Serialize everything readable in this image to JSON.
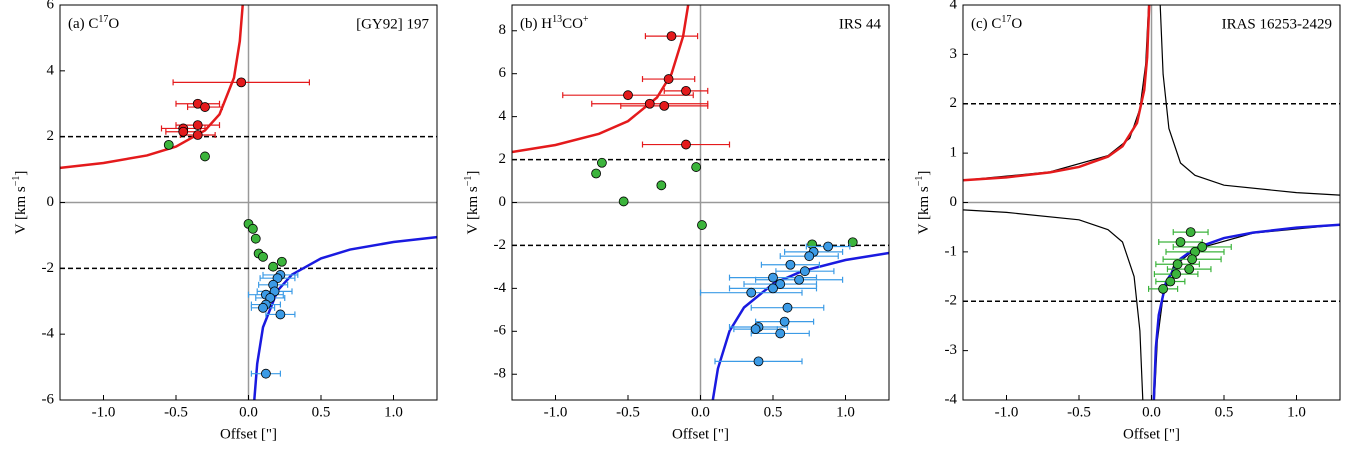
{
  "chart_data": [
    {
      "type": "scatter",
      "label": [
        {
          "text": "(a) C"
        },
        {
          "text": "17",
          "sup": true
        },
        {
          "text": "O"
        }
      ],
      "source": "[GY92] 197",
      "xlabel": "Offset [\"]",
      "ylabel": [
        {
          "text": "V [km s"
        },
        {
          "text": "−1",
          "sup": true
        },
        {
          "text": "]"
        }
      ],
      "xlim": [
        -1.3,
        1.3
      ],
      "ylim": [
        -6,
        6
      ],
      "xticks": [
        {
          "value": -1,
          "label": "-1.0"
        },
        -0.5,
        {
          "value": 0,
          "label": "0.0"
        },
        0.5,
        {
          "value": 1,
          "label": "1.0"
        }
      ],
      "yticks": [
        -6,
        -4,
        -2,
        0,
        2,
        4,
        6
      ],
      "hlines": [
        2,
        -2
      ],
      "series": [
        {
          "style": "line",
          "color": "#e41a1c",
          "x": [
            -1.3,
            -1.0,
            -0.7,
            -0.5,
            -0.3,
            -0.2,
            -0.1,
            -0.06,
            -0.04
          ],
          "values": [
            1.05,
            1.2,
            1.43,
            1.7,
            2.19,
            2.68,
            3.79,
            4.9,
            6.0
          ]
        },
        {
          "style": "line",
          "color": "#1a1ae0",
          "x": [
            1.3,
            1.0,
            0.7,
            0.5,
            0.3,
            0.2,
            0.1,
            0.06,
            0.04
          ],
          "values": [
            -1.05,
            -1.2,
            -1.43,
            -1.7,
            -2.19,
            -2.68,
            -3.79,
            -4.9,
            -6.0
          ]
        },
        {
          "style": "points",
          "color": "#e41a1c",
          "x": [
            -0.05,
            -0.35,
            -0.3,
            -0.35,
            -0.45,
            -0.45,
            -0.35
          ],
          "values": [
            3.65,
            3.0,
            2.9,
            2.35,
            2.25,
            2.15,
            2.05
          ],
          "xerr": [
            0.47,
            0.15,
            0.12,
            0.15,
            0.15,
            0.12,
            0.12
          ]
        },
        {
          "style": "points",
          "color": "#3cb43c",
          "x": [
            -0.55,
            -0.3,
            0.0,
            0.03,
            0.05,
            0.07,
            0.1,
            0.17,
            0.23
          ],
          "values": [
            1.75,
            1.4,
            -0.65,
            -0.8,
            -1.1,
            -1.55,
            -1.65,
            -1.95,
            -1.8
          ]
        },
        {
          "style": "points",
          "color": "#3c9be6",
          "x": [
            0.22,
            0.2,
            0.17,
            0.18,
            0.12,
            0.15,
            0.12,
            0.1,
            0.22,
            0.12
          ],
          "values": [
            -2.2,
            -2.3,
            -2.5,
            -2.7,
            -2.8,
            -2.9,
            -3.1,
            -3.2,
            -3.4,
            -5.2
          ],
          "xerr": [
            0.12,
            0.12,
            0.1,
            0.12,
            0.12,
            0.1,
            0.1,
            0.08,
            0.1,
            0.1
          ]
        }
      ]
    },
    {
      "type": "scatter",
      "label": [
        {
          "text": "(b) H"
        },
        {
          "text": "13",
          "sup": true
        },
        {
          "text": "CO"
        },
        {
          "text": "+",
          "sup": true
        }
      ],
      "source": "IRS 44",
      "xlabel": "Offset [\"]",
      "ylabel": [
        {
          "text": "V [km s"
        },
        {
          "text": "−1",
          "sup": true
        },
        {
          "text": "]"
        }
      ],
      "xlim": [
        -1.3,
        1.3
      ],
      "ylim": [
        -9.2,
        9.2
      ],
      "xticks": [
        {
          "value": -1,
          "label": "-1.0"
        },
        -0.5,
        {
          "value": 0,
          "label": "0.0"
        },
        0.5,
        {
          "value": 1,
          "label": "1.0"
        }
      ],
      "yticks": [
        -8,
        -6,
        -4,
        -2,
        0,
        2,
        4,
        6,
        8
      ],
      "hlines": [
        2,
        -2
      ],
      "series": [
        {
          "style": "line",
          "color": "#e41a1c",
          "x": [
            -1.3,
            -1.0,
            -0.7,
            -0.5,
            -0.3,
            -0.2,
            -0.12,
            -0.085
          ],
          "values": [
            2.35,
            2.68,
            3.2,
            3.79,
            4.89,
            5.99,
            7.74,
            9.2
          ]
        },
        {
          "style": "line",
          "color": "#1a1ae0",
          "x": [
            1.3,
            1.0,
            0.7,
            0.5,
            0.3,
            0.2,
            0.12,
            0.085
          ],
          "values": [
            -2.35,
            -2.68,
            -3.2,
            -3.79,
            -4.89,
            -5.99,
            -7.74,
            -9.2
          ]
        },
        {
          "style": "points",
          "color": "#e41a1c",
          "x": [
            -0.2,
            -0.22,
            -0.1,
            -0.5,
            -0.35,
            -0.25,
            -0.1
          ],
          "values": [
            7.75,
            5.75,
            5.2,
            5.0,
            4.6,
            4.5,
            2.7
          ],
          "xerr": [
            0.18,
            0.18,
            0.15,
            0.45,
            0.4,
            0.3,
            0.3
          ]
        },
        {
          "style": "points",
          "color": "#3cb43c",
          "x": [
            -0.68,
            -0.72,
            -0.27,
            -0.03,
            -0.53,
            0.01,
            0.77,
            1.05
          ],
          "values": [
            1.85,
            1.35,
            0.8,
            1.65,
            0.05,
            -1.05,
            -1.95,
            -1.85
          ]
        },
        {
          "style": "points",
          "color": "#3c9be6",
          "x": [
            0.88,
            0.78,
            0.75,
            0.62,
            0.72,
            0.68,
            0.5,
            0.55,
            0.5,
            0.35,
            0.6,
            0.58,
            0.4,
            0.38,
            0.55,
            0.4
          ],
          "values": [
            -2.05,
            -2.3,
            -2.5,
            -2.9,
            -3.2,
            -3.6,
            -3.5,
            -3.8,
            -4.0,
            -4.2,
            -4.9,
            -5.55,
            -5.8,
            -5.9,
            -6.1,
            -7.4
          ],
          "xerr": [
            0.15,
            0.2,
            0.2,
            0.2,
            0.2,
            0.3,
            0.3,
            0.25,
            0.3,
            0.35,
            0.25,
            0.2,
            0.2,
            0.15,
            0.2,
            0.3
          ]
        }
      ]
    },
    {
      "type": "scatter",
      "label": [
        {
          "text": "(c) C"
        },
        {
          "text": "17",
          "sup": true
        },
        {
          "text": "O"
        }
      ],
      "source": "IRAS 16253-2429",
      "xlabel": "Offset [\"]",
      "ylabel": [
        {
          "text": "V [km s"
        },
        {
          "text": "−1",
          "sup": true
        },
        {
          "text": "]"
        }
      ],
      "xlim": [
        -1.3,
        1.3
      ],
      "ylim": [
        -4,
        4
      ],
      "xticks": [
        {
          "value": -1,
          "label": "-1.0"
        },
        -0.5,
        {
          "value": 0,
          "label": "0.0"
        },
        0.5,
        {
          "value": 1,
          "label": "1.0"
        }
      ],
      "yticks": [
        -4,
        -3,
        -2,
        -1,
        0,
        1,
        2,
        3,
        4
      ],
      "hlines": [
        2,
        -2
      ],
      "series": [
        {
          "style": "thin",
          "color": "#000000",
          "x": [
            1.3,
            1.0,
            0.5,
            0.3,
            0.2,
            0.12,
            0.08,
            0.06
          ],
          "values": [
            0.15,
            0.2,
            0.35,
            0.55,
            0.8,
            1.5,
            2.6,
            4
          ]
        },
        {
          "style": "thin",
          "color": "#000000",
          "x": [
            -1.3,
            -1.0,
            -0.5,
            -0.3,
            -0.2,
            -0.12,
            -0.08,
            -0.06
          ],
          "values": [
            -0.15,
            -0.2,
            -0.35,
            -0.55,
            -0.8,
            -1.5,
            -2.6,
            -4
          ]
        },
        {
          "style": "thin",
          "color": "#000000",
          "x": [
            -1.3,
            -0.7,
            -0.3,
            -0.15,
            -0.08,
            -0.04,
            -0.02
          ],
          "values": [
            0.45,
            0.62,
            0.95,
            1.3,
            1.9,
            2.8,
            4
          ]
        },
        {
          "style": "thin",
          "color": "#000000",
          "x": [
            1.3,
            0.7,
            0.3,
            0.15,
            0.08,
            0.04,
            0.02
          ],
          "values": [
            -0.45,
            -0.62,
            -0.95,
            -1.3,
            -1.9,
            -2.8,
            -4
          ]
        },
        {
          "style": "line",
          "color": "#e41a1c",
          "x": [
            -1.3,
            -1.0,
            -0.7,
            -0.5,
            -0.3,
            -0.2,
            -0.1,
            -0.05,
            -0.03,
            -0.016
          ],
          "values": [
            0.45,
            0.51,
            0.61,
            0.72,
            0.93,
            1.14,
            1.61,
            2.28,
            2.94,
            4.0
          ]
        },
        {
          "style": "line",
          "color": "#1a1ae0",
          "x": [
            1.3,
            1.0,
            0.7,
            0.5,
            0.3,
            0.2,
            0.1,
            0.05,
            0.03,
            0.016
          ],
          "values": [
            -0.45,
            -0.51,
            -0.61,
            -0.72,
            -0.93,
            -1.14,
            -1.61,
            -2.28,
            -2.94,
            -4.0
          ]
        },
        {
          "style": "points",
          "color": "#3cb43c",
          "x": [
            0.27,
            0.2,
            0.35,
            0.3,
            0.28,
            0.18,
            0.26,
            0.17,
            0.13,
            0.08
          ],
          "values": [
            -0.6,
            -0.8,
            -0.9,
            -1.0,
            -1.15,
            -1.25,
            -1.35,
            -1.45,
            -1.6,
            -1.75
          ],
          "xerr": [
            0.12,
            0.15,
            0.2,
            0.2,
            0.2,
            0.15,
            0.15,
            0.15,
            0.1,
            0.1
          ]
        }
      ]
    }
  ]
}
